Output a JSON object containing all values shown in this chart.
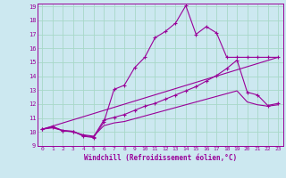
{
  "xlabel": "Windchill (Refroidissement éolien,°C)",
  "bg_color": "#cce8f0",
  "grid_color": "#a8d8c8",
  "line_color": "#990099",
  "xlim": [
    -0.5,
    23.5
  ],
  "ylim": [
    9,
    19.2
  ],
  "xticks": [
    0,
    1,
    2,
    3,
    4,
    5,
    6,
    7,
    8,
    9,
    10,
    11,
    12,
    13,
    14,
    15,
    16,
    17,
    18,
    19,
    20,
    21,
    22,
    23
  ],
  "yticks": [
    9,
    10,
    11,
    12,
    13,
    14,
    15,
    16,
    17,
    18,
    19
  ],
  "series": [
    {
      "x": [
        0,
        1,
        2,
        3,
        4,
        5,
        6,
        7,
        8,
        9,
        10,
        11,
        12,
        13,
        14,
        15,
        16,
        17,
        18,
        19,
        20,
        21,
        22,
        23
      ],
      "y": [
        10.2,
        10.4,
        10.1,
        10.05,
        9.7,
        9.6,
        10.7,
        13.05,
        13.35,
        14.6,
        15.35,
        16.75,
        17.2,
        17.8,
        19.05,
        17.0,
        17.55,
        17.1,
        15.35,
        15.35,
        15.35,
        15.35,
        15.35,
        15.35
      ],
      "marker": "+"
    },
    {
      "x": [
        0,
        1,
        2,
        3,
        4,
        5,
        6,
        7,
        8,
        9,
        10,
        11,
        12,
        13,
        14,
        15,
        16,
        17,
        18,
        19,
        20,
        21,
        22,
        23
      ],
      "y": [
        10.2,
        10.35,
        10.1,
        10.05,
        9.75,
        9.65,
        10.85,
        11.05,
        11.25,
        11.55,
        11.85,
        12.05,
        12.35,
        12.65,
        12.95,
        13.25,
        13.65,
        14.05,
        14.55,
        15.15,
        12.85,
        12.65,
        11.9,
        12.05
      ],
      "marker": "+"
    },
    {
      "x": [
        0,
        1,
        2,
        3,
        4,
        5,
        6,
        7,
        8,
        9,
        10,
        11,
        12,
        13,
        14,
        15,
        16,
        17,
        18,
        19,
        20,
        21,
        22,
        23
      ],
      "y": [
        10.2,
        10.3,
        10.1,
        10.0,
        9.8,
        9.7,
        10.45,
        10.65,
        10.75,
        10.95,
        11.15,
        11.35,
        11.55,
        11.75,
        11.95,
        12.15,
        12.35,
        12.55,
        12.75,
        12.95,
        12.15,
        11.95,
        11.85,
        11.95
      ],
      "marker": null
    },
    {
      "x": [
        0,
        23
      ],
      "y": [
        10.2,
        15.35
      ],
      "marker": null
    }
  ]
}
